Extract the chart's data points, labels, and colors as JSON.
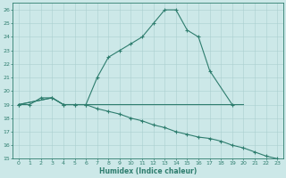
{
  "xlabel": "Humidex (Indice chaleur)",
  "x_values": [
    0,
    1,
    2,
    3,
    4,
    5,
    6,
    7,
    8,
    9,
    10,
    11,
    12,
    13,
    14,
    15,
    16,
    17,
    18,
    19,
    20,
    21,
    22,
    23
  ],
  "line1": [
    19,
    19,
    19.5,
    19.5,
    19,
    19,
    19,
    21,
    22.5,
    23,
    23.5,
    24.0,
    25,
    26,
    26,
    24.5,
    24,
    21.5,
    null,
    19,
    null,
    null,
    null,
    null
  ],
  "line2": [
    19,
    null,
    null,
    19.5,
    19,
    19,
    19,
    19,
    19,
    19,
    19,
    19,
    19,
    19,
    19,
    19,
    19,
    19,
    19,
    19,
    19,
    null,
    null,
    null
  ],
  "line3": [
    19,
    null,
    null,
    19.5,
    19,
    19,
    19,
    18.7,
    18.5,
    18.3,
    18.0,
    17.8,
    17.5,
    17.3,
    17.0,
    16.8,
    16.6,
    16.5,
    16.3,
    16.0,
    15.8,
    15.5,
    15.2,
    15.0
  ],
  "line_color": "#2e7d6e",
  "bg_color": "#cce8e8",
  "grid_color": "#aacfcf",
  "ylim": [
    15,
    26.5
  ],
  "xlim": [
    -0.5,
    23.5
  ],
  "yticks": [
    15,
    16,
    17,
    18,
    19,
    20,
    21,
    22,
    23,
    24,
    25,
    26
  ],
  "xticks": [
    0,
    1,
    2,
    3,
    4,
    5,
    6,
    7,
    8,
    9,
    10,
    11,
    12,
    13,
    14,
    15,
    16,
    17,
    18,
    19,
    20,
    21,
    22,
    23
  ]
}
